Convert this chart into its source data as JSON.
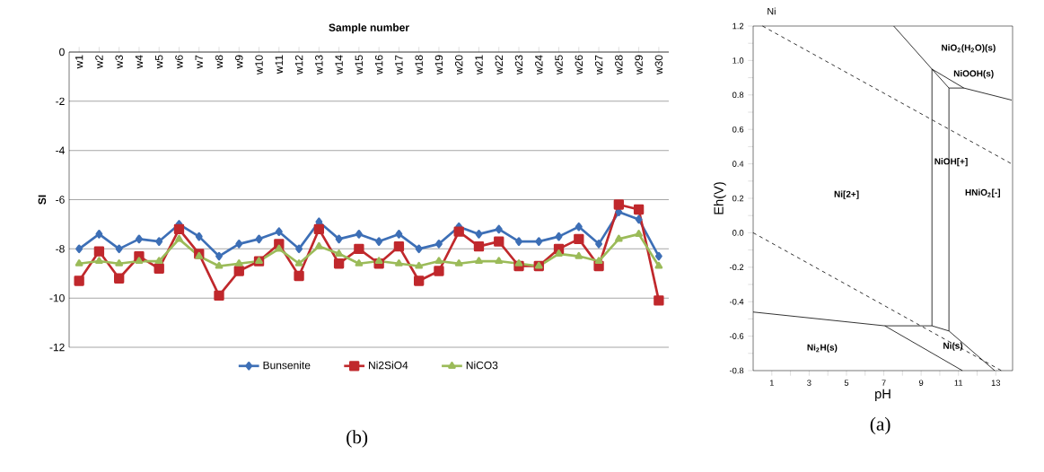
{
  "chart_data": [
    {
      "type": "line",
      "xlabel": "Sample number",
      "ylabel": "SI",
      "categories": [
        "w1",
        "w2",
        "w3",
        "w4",
        "w5",
        "w6",
        "w7",
        "w8",
        "w9",
        "w10",
        "w11",
        "w12",
        "w13",
        "w14",
        "w15",
        "w16",
        "w17",
        "w18",
        "w19",
        "w20",
        "w21",
        "w22",
        "w23",
        "w24",
        "w25",
        "w26",
        "w27",
        "w28",
        "w29",
        "w30"
      ],
      "series": [
        {
          "name": "Bunsenite",
          "color": "#3d6fb6",
          "marker": "diamond",
          "values": [
            -8.0,
            -7.4,
            -8.0,
            -7.6,
            -7.7,
            -7.0,
            -7.5,
            -8.3,
            -7.8,
            -7.6,
            -7.3,
            -8.0,
            -6.9,
            -7.6,
            -7.4,
            -7.7,
            -7.4,
            -8.0,
            -7.8,
            -7.1,
            -7.4,
            -7.2,
            -7.7,
            -7.7,
            -7.5,
            -7.1,
            -7.8,
            -6.5,
            -6.8,
            -8.3
          ]
        },
        {
          "name": "Ni2SiO4",
          "color": "#c0282c",
          "marker": "square",
          "values": [
            -9.3,
            -8.1,
            -9.2,
            -8.3,
            -8.8,
            -7.2,
            -8.2,
            -9.9,
            -8.9,
            -8.5,
            -7.8,
            -9.1,
            -7.2,
            -8.6,
            -8.0,
            -8.6,
            -7.9,
            -9.3,
            -8.9,
            -7.3,
            -7.9,
            -7.7,
            -8.7,
            -8.7,
            -8.0,
            -7.6,
            -8.7,
            -6.2,
            -6.4,
            -10.1
          ]
        },
        {
          "name": "NiCO3",
          "color": "#9bbb59",
          "marker": "triangle",
          "values": [
            -8.6,
            -8.5,
            -8.6,
            -8.5,
            -8.5,
            -7.6,
            -8.3,
            -8.7,
            -8.6,
            -8.5,
            -8.0,
            -8.6,
            -7.9,
            -8.2,
            -8.6,
            -8.5,
            -8.6,
            -8.7,
            -8.5,
            -8.6,
            -8.5,
            -8.5,
            -8.6,
            -8.7,
            -8.2,
            -8.3,
            -8.5,
            -7.6,
            -7.4,
            -8.7
          ]
        }
      ],
      "ylim": [
        -12,
        0
      ],
      "yticks": [
        0,
        -2,
        -4,
        -6,
        -8,
        -10,
        -12
      ],
      "grid": "y",
      "legend": "bottom",
      "line_style": "solid",
      "annotations": [
        "(b)"
      ]
    },
    {
      "type": "line",
      "title": "Ni",
      "xlabel": "pH",
      "ylabel": "Eh(V)",
      "xlim": [
        0,
        13.9
      ],
      "ylim": [
        -0.8,
        1.2
      ],
      "xticks": [
        1,
        {
          "value": 2,
          "label": null
        },
        3,
        {
          "value": 4,
          "label": null
        },
        5,
        {
          "value": 6,
          "label": null
        },
        7,
        {
          "value": 8,
          "label": null
        },
        9,
        {
          "value": 10,
          "label": null
        },
        11,
        {
          "value": 12,
          "label": null
        },
        13
      ],
      "yticks": [
        {
          "value": -0.8,
          "label": "-0.8"
        },
        {
          "value": -0.7,
          "label": null
        },
        {
          "value": -0.6,
          "label": "-0.6"
        },
        {
          "value": -0.5,
          "label": null
        },
        {
          "value": -0.4,
          "label": "-0.4"
        },
        {
          "value": -0.3,
          "label": null
        },
        {
          "value": -0.2,
          "label": "-0.2"
        },
        {
          "value": -0.1,
          "label": null
        },
        {
          "value": 0,
          "label": "0.0"
        },
        {
          "value": 0.1,
          "label": null
        },
        {
          "value": 0.2,
          "label": "0.2"
        },
        {
          "value": 0.3,
          "label": null
        },
        {
          "value": 0.4,
          "label": "0.4"
        },
        {
          "value": 0.5,
          "label": null
        },
        {
          "value": 0.6,
          "label": "0.6"
        },
        {
          "value": 0.7,
          "label": null
        },
        {
          "value": 0.8,
          "label": "0.8"
        },
        {
          "value": 0.9,
          "label": null
        },
        {
          "value": 1.0,
          "label": "1.0"
        },
        {
          "value": 1.1,
          "label": null
        },
        {
          "value": 1.2,
          "label": "1.2"
        }
      ],
      "marker": "none",
      "grid": false,
      "legend": false,
      "series": [
        {
          "color": "#000000",
          "line_style": "dashed",
          "x": [
            0.5,
            13.85
          ],
          "values": [
            1.2,
            0.4
          ]
        },
        {
          "color": "#000000",
          "line_style": "dashed",
          "x": [
            0,
            13.3
          ],
          "values": [
            0.0,
            -0.8
          ]
        },
        {
          "color": "#000000",
          "line_style": "solid",
          "x": [
            7.53,
            9.58,
            9.58,
            7.05,
            0,
            null,
            9.58,
            10.49,
            10.49,
            9.58,
            null,
            10.49,
            11.29,
            null,
            9.58,
            11.29,
            13.85,
            null,
            10.49,
            12.94,
            null,
            7.05,
            11.21
          ],
          "values": [
            1.2,
            0.95,
            -0.54,
            -0.54,
            -0.46,
            null,
            0.95,
            0.84,
            -0.57,
            -0.54,
            null,
            0.84,
            0.84,
            null,
            0.95,
            0.84,
            0.77,
            null,
            -0.57,
            -0.8,
            null,
            -0.54,
            -0.8
          ]
        }
      ],
      "annotations": [
        "(a)",
        "NiO$_{2}$(H$_{2}$O)(s)",
        "NiOOH(s)",
        "NiOH[+]",
        "Ni[2+]",
        "HNiO$_{2}$[-]",
        "Ni$_{2}$H(s)",
        "Ni(s)"
      ]
    }
  ]
}
